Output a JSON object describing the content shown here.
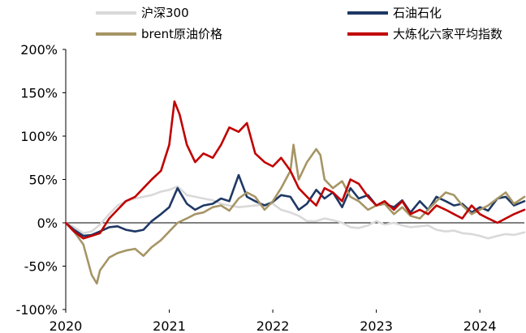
{
  "chart_data": {
    "type": "line",
    "title": "",
    "xlabel": "",
    "ylabel": "",
    "ylim": [
      -100,
      200
    ],
    "yunit": "%",
    "y_ticks": [
      "200%",
      "150%",
      "100%",
      "50%",
      "0%",
      "-50%",
      "-100%"
    ],
    "y_tick_values": [
      200,
      150,
      100,
      50,
      0,
      -50,
      -100
    ],
    "x_ticks": [
      "2020",
      "2021",
      "2022",
      "2023",
      "2024"
    ],
    "x_tick_values": [
      2020.0,
      2021.0,
      2022.0,
      2023.0,
      2024.0
    ],
    "xlim": [
      2020.0,
      2024.43
    ],
    "grid": false,
    "legend": "top",
    "series": [
      {
        "name": "沪深300",
        "color": "#d9d9d9",
        "x": [
          2020.0,
          2020.08,
          2020.17,
          2020.25,
          2020.33,
          2020.42,
          2020.5,
          2020.58,
          2020.67,
          2020.75,
          2020.83,
          2020.92,
          2021.0,
          2021.08,
          2021.17,
          2021.25,
          2021.33,
          2021.42,
          2021.5,
          2021.58,
          2021.67,
          2021.75,
          2021.83,
          2021.92,
          2022.0,
          2022.08,
          2022.17,
          2022.25,
          2022.33,
          2022.42,
          2022.5,
          2022.58,
          2022.67,
          2022.75,
          2022.83,
          2022.92,
          2023.0,
          2023.08,
          2023.17,
          2023.25,
          2023.33,
          2023.42,
          2023.5,
          2023.58,
          2023.67,
          2023.75,
          2023.83,
          2023.92,
          2024.0,
          2024.08,
          2024.17,
          2024.25,
          2024.33,
          2024.43
        ],
        "values": [
          0,
          -5,
          -12,
          -10,
          -2,
          10,
          20,
          25,
          28,
          30,
          32,
          36,
          38,
          42,
          32,
          30,
          28,
          26,
          22,
          20,
          18,
          19,
          20,
          21,
          22,
          15,
          12,
          8,
          2,
          2,
          5,
          3,
          0,
          -5,
          -6,
          -3,
          2,
          -2,
          0,
          -3,
          -5,
          -4,
          -3,
          -8,
          -10,
          -9,
          -12,
          -13,
          -15,
          -18,
          -15,
          -13,
          -14,
          -11
        ]
      },
      {
        "name": "石油石化",
        "color": "#1f3864",
        "x": [
          2020.0,
          2020.08,
          2020.17,
          2020.25,
          2020.33,
          2020.42,
          2020.5,
          2020.58,
          2020.67,
          2020.75,
          2020.83,
          2020.92,
          2021.0,
          2021.08,
          2021.17,
          2021.25,
          2021.33,
          2021.42,
          2021.5,
          2021.58,
          2021.67,
          2021.75,
          2021.83,
          2021.92,
          2022.0,
          2022.08,
          2022.17,
          2022.25,
          2022.33,
          2022.42,
          2022.5,
          2022.58,
          2022.67,
          2022.75,
          2022.83,
          2022.92,
          2023.0,
          2023.08,
          2023.17,
          2023.25,
          2023.33,
          2023.42,
          2023.5,
          2023.58,
          2023.67,
          2023.75,
          2023.83,
          2023.92,
          2024.0,
          2024.08,
          2024.17,
          2024.25,
          2024.33,
          2024.43
        ],
        "values": [
          0,
          -8,
          -15,
          -14,
          -10,
          -5,
          -4,
          -8,
          -10,
          -8,
          2,
          10,
          18,
          40,
          22,
          15,
          20,
          22,
          28,
          25,
          55,
          30,
          25,
          20,
          24,
          32,
          30,
          15,
          22,
          38,
          28,
          35,
          18,
          40,
          28,
          32,
          20,
          22,
          18,
          26,
          12,
          25,
          15,
          30,
          25,
          20,
          22,
          12,
          18,
          14,
          28,
          30,
          20,
          25
        ]
      },
      {
        "name": "brent原油价格",
        "color": "#a69565",
        "x": [
          2020.0,
          2020.08,
          2020.17,
          2020.25,
          2020.3,
          2020.33,
          2020.42,
          2020.5,
          2020.58,
          2020.67,
          2020.75,
          2020.83,
          2020.92,
          2021.0,
          2021.08,
          2021.17,
          2021.25,
          2021.33,
          2021.42,
          2021.5,
          2021.58,
          2021.67,
          2021.75,
          2021.83,
          2021.92,
          2022.0,
          2022.08,
          2022.17,
          2022.2,
          2022.25,
          2022.33,
          2022.42,
          2022.46,
          2022.5,
          2022.58,
          2022.67,
          2022.75,
          2022.83,
          2022.92,
          2023.0,
          2023.08,
          2023.17,
          2023.25,
          2023.33,
          2023.42,
          2023.5,
          2023.58,
          2023.67,
          2023.75,
          2023.83,
          2023.92,
          2024.0,
          2024.08,
          2024.17,
          2024.25,
          2024.33,
          2024.43
        ],
        "values": [
          0,
          -10,
          -25,
          -60,
          -70,
          -55,
          -40,
          -35,
          -32,
          -30,
          -38,
          -28,
          -20,
          -10,
          0,
          5,
          10,
          12,
          18,
          20,
          14,
          28,
          35,
          30,
          15,
          25,
          40,
          60,
          90,
          50,
          70,
          85,
          78,
          50,
          40,
          48,
          30,
          25,
          15,
          20,
          22,
          10,
          18,
          8,
          5,
          15,
          25,
          35,
          32,
          20,
          10,
          15,
          20,
          28,
          35,
          22,
          30
        ]
      },
      {
        "name": "大炼化六家平均指数",
        "color": "#c00000",
        "x": [
          2020.0,
          2020.08,
          2020.17,
          2020.25,
          2020.33,
          2020.42,
          2020.5,
          2020.58,
          2020.67,
          2020.75,
          2020.83,
          2020.92,
          2021.0,
          2021.05,
          2021.1,
          2021.17,
          2021.25,
          2021.33,
          2021.42,
          2021.5,
          2021.58,
          2021.67,
          2021.75,
          2021.83,
          2021.92,
          2022.0,
          2022.08,
          2022.17,
          2022.25,
          2022.33,
          2022.42,
          2022.5,
          2022.58,
          2022.67,
          2022.75,
          2022.83,
          2022.92,
          2023.0,
          2023.08,
          2023.17,
          2023.25,
          2023.33,
          2023.42,
          2023.5,
          2023.58,
          2023.67,
          2023.75,
          2023.83,
          2023.92,
          2024.0,
          2024.08,
          2024.17,
          2024.25,
          2024.33,
          2024.43
        ],
        "values": [
          0,
          -10,
          -18,
          -15,
          -12,
          5,
          15,
          25,
          30,
          40,
          50,
          60,
          90,
          140,
          125,
          90,
          70,
          80,
          75,
          90,
          110,
          105,
          115,
          80,
          70,
          65,
          75,
          60,
          40,
          30,
          20,
          40,
          35,
          25,
          50,
          45,
          30,
          20,
          25,
          15,
          25,
          10,
          15,
          10,
          20,
          15,
          10,
          5,
          20,
          10,
          5,
          0,
          5,
          10,
          15
        ]
      }
    ]
  }
}
